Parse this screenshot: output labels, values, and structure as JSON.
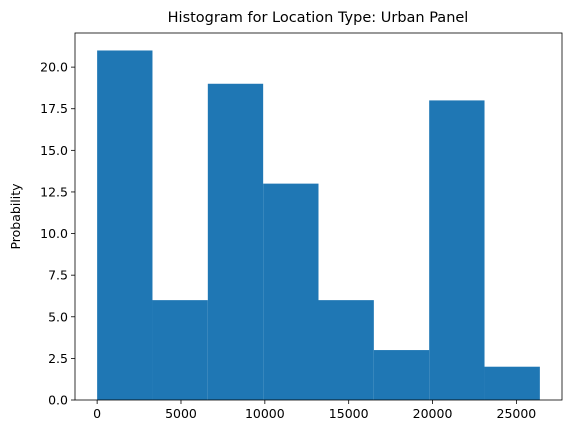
{
  "chart_data": {
    "type": "bar",
    "title": "Histogram for Location Type: Urban Panel",
    "xlabel": "",
    "ylabel": "Probability",
    "bar_color": "#1f77b4",
    "grid": false,
    "bins": [
      {
        "start": 0,
        "end": 3300,
        "value": 21
      },
      {
        "start": 3300,
        "end": 6600,
        "value": 6
      },
      {
        "start": 6600,
        "end": 9900,
        "value": 19
      },
      {
        "start": 9900,
        "end": 13200,
        "value": 13
      },
      {
        "start": 13200,
        "end": 16500,
        "value": 6
      },
      {
        "start": 16500,
        "end": 19800,
        "value": 3
      },
      {
        "start": 19800,
        "end": 23100,
        "value": 18
      },
      {
        "start": 23100,
        "end": 26400,
        "value": 2
      }
    ],
    "xlim": [
      -1320,
      27720
    ],
    "ylim": [
      0,
      22.05
    ],
    "x_ticks": [
      {
        "value": 0,
        "label": "0"
      },
      {
        "value": 5000,
        "label": "5000"
      },
      {
        "value": 10000,
        "label": "10000"
      },
      {
        "value": 15000,
        "label": "15000"
      },
      {
        "value": 20000,
        "label": "20000"
      },
      {
        "value": 25000,
        "label": "25000"
      }
    ],
    "y_ticks": [
      {
        "value": 0,
        "label": "0.0"
      },
      {
        "value": 2.5,
        "label": "2.5"
      },
      {
        "value": 5,
        "label": "5.0"
      },
      {
        "value": 7.5,
        "label": "7.5"
      },
      {
        "value": 10,
        "label": "10.0"
      },
      {
        "value": 12.5,
        "label": "12.5"
      },
      {
        "value": 15,
        "label": "15.0"
      },
      {
        "value": 17.5,
        "label": "17.5"
      },
      {
        "value": 20,
        "label": "20.0"
      }
    ]
  }
}
